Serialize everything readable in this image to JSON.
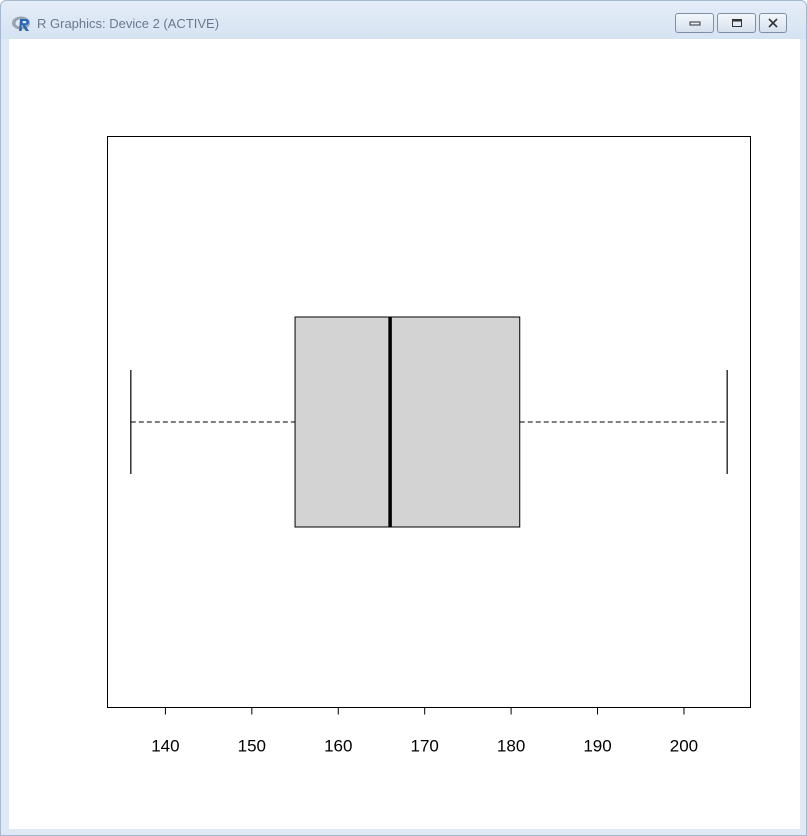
{
  "window": {
    "title": "R Graphics: Device 2 (ACTIVE)",
    "icon": "r-logo-icon",
    "controls": [
      "minimize-icon",
      "maximize-icon",
      "close-icon"
    ]
  },
  "chart_data": {
    "type": "boxplot",
    "orientation": "horizontal",
    "series": [
      {
        "min": 136,
        "q1": 155,
        "median": 166,
        "q3": 181,
        "max": 205
      }
    ],
    "xlim": [
      133.3,
      207.7
    ],
    "xticks": [
      140,
      150,
      160,
      170,
      180,
      190,
      200
    ],
    "box_fill": "#d3d3d3",
    "frame": true,
    "grid": false,
    "title": "",
    "xlabel": "",
    "ylabel": ""
  }
}
